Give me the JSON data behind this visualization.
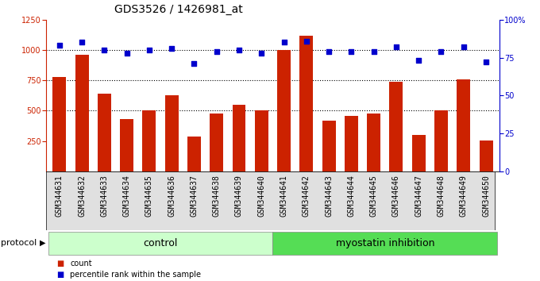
{
  "title": "GDS3526 / 1426981_at",
  "samples": [
    "GSM344631",
    "GSM344632",
    "GSM344633",
    "GSM344634",
    "GSM344635",
    "GSM344636",
    "GSM344637",
    "GSM344638",
    "GSM344639",
    "GSM344640",
    "GSM344641",
    "GSM344642",
    "GSM344643",
    "GSM344644",
    "GSM344645",
    "GSM344646",
    "GSM344647",
    "GSM344648",
    "GSM344649",
    "GSM344650"
  ],
  "counts": [
    780,
    960,
    640,
    430,
    500,
    630,
    290,
    480,
    550,
    500,
    1000,
    1120,
    420,
    460,
    480,
    740,
    300,
    500,
    760,
    255
  ],
  "percentiles": [
    83,
    85,
    80,
    78,
    80,
    81,
    71,
    79,
    80,
    78,
    85,
    86,
    79,
    79,
    79,
    82,
    73,
    79,
    82,
    72
  ],
  "control_count": 10,
  "myostatin_count": 10,
  "bar_color": "#cc2200",
  "dot_color": "#0000cc",
  "ylim_left": [
    0,
    1250
  ],
  "ylim_right": [
    0,
    100
  ],
  "yticks_left": [
    250,
    500,
    750,
    1000,
    1250
  ],
  "yticks_right": [
    0,
    25,
    50,
    75,
    100
  ],
  "grid_lines": [
    1000,
    750,
    500
  ],
  "control_color": "#ccffcc",
  "myostatin_color": "#55dd55",
  "protocol_label": "protocol",
  "control_label": "control",
  "myostatin_label": "myostatin inhibition",
  "legend_count": "count",
  "legend_percentile": "percentile rank within the sample",
  "bg_color": "#ffffff",
  "title_fontsize": 10,
  "tick_fontsize": 7,
  "label_fontsize": 9
}
